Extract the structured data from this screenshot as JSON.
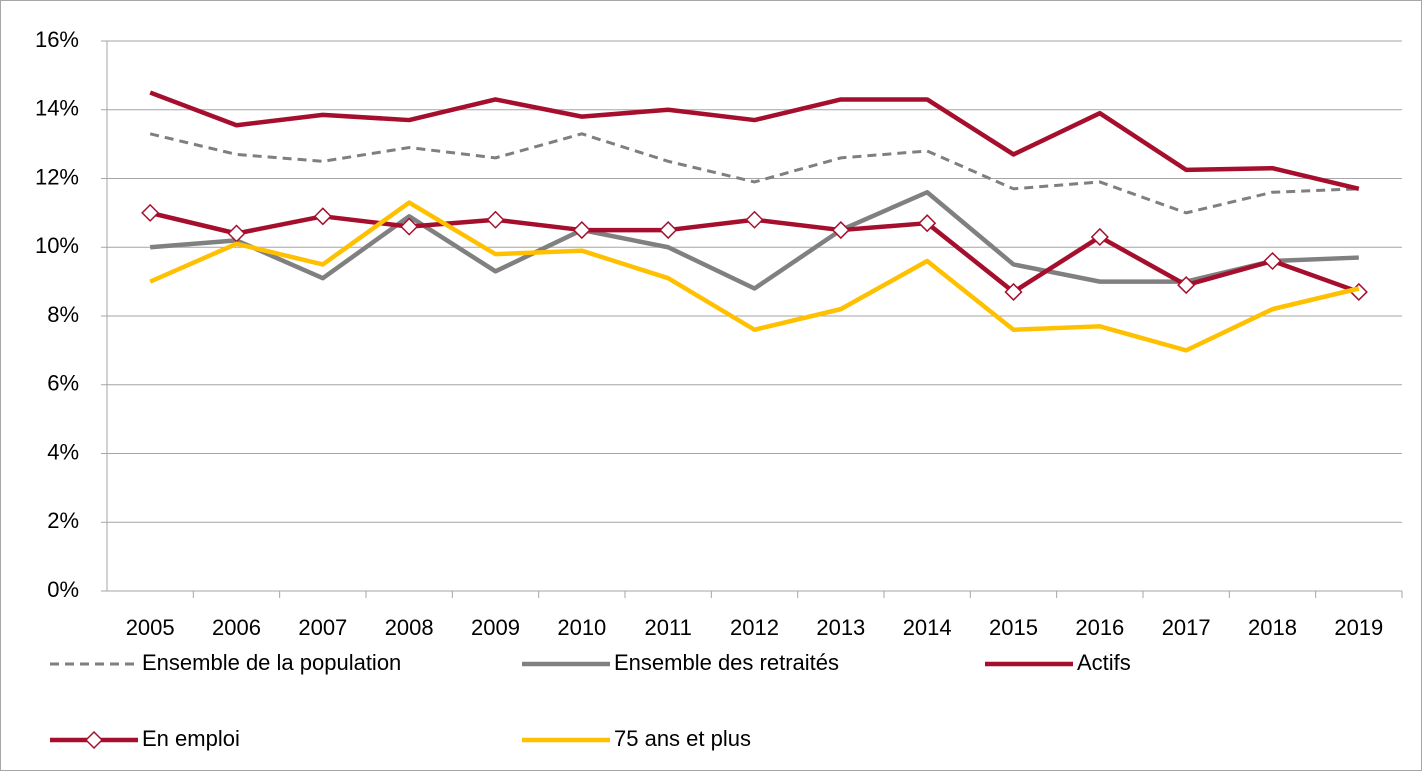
{
  "chart_data": {
    "type": "line",
    "categories": [
      "2005",
      "2006",
      "2007",
      "2008",
      "2009",
      "2010",
      "2011",
      "2012",
      "2013",
      "2014",
      "2015",
      "2016",
      "2017",
      "2018",
      "2019"
    ],
    "series": [
      {
        "name": "Ensemble de la population",
        "color": "#7f7f7f",
        "dashed": true,
        "values": [
          13.3,
          12.7,
          12.5,
          12.9,
          12.6,
          13.3,
          12.5,
          11.9,
          12.6,
          12.8,
          11.7,
          11.9,
          11.0,
          11.6,
          11.7
        ]
      },
      {
        "name": "Ensemble des retraités",
        "color": "#808080",
        "values": [
          10.0,
          10.2,
          9.1,
          10.9,
          9.3,
          10.5,
          10.0,
          8.8,
          10.5,
          11.6,
          9.5,
          9.0,
          9.0,
          9.6,
          9.7
        ]
      },
      {
        "name": "Actifs",
        "color": "#a50f2d",
        "values": [
          14.5,
          13.55,
          13.85,
          13.7,
          14.3,
          13.8,
          14.0,
          13.7,
          14.3,
          14.3,
          12.7,
          13.9,
          12.25,
          12.3,
          11.7
        ]
      },
      {
        "name": "En emploi",
        "color": "#a50f2d",
        "marker": "diamond",
        "values": [
          11.0,
          10.4,
          10.9,
          10.6,
          10.8,
          10.5,
          10.5,
          10.8,
          10.5,
          10.7,
          8.7,
          10.3,
          8.9,
          9.6,
          8.7
        ]
      },
      {
        "name": "75 ans et plus",
        "color": "#ffc000",
        "values": [
          9.0,
          10.1,
          9.5,
          11.3,
          9.8,
          9.9,
          9.1,
          7.6,
          8.2,
          9.6,
          7.6,
          7.7,
          7.0,
          8.2,
          8.8
        ]
      }
    ],
    "ylim": [
      0,
      16
    ],
    "yticks": [
      {
        "value": 0,
        "label": "0%"
      },
      {
        "value": 2,
        "label": "2%"
      },
      {
        "value": 4,
        "label": "4%"
      },
      {
        "value": 6,
        "label": "6%"
      },
      {
        "value": 8,
        "label": "8%"
      },
      {
        "value": 10,
        "label": "10%"
      },
      {
        "value": 12,
        "label": "12%"
      },
      {
        "value": 14,
        "label": "14%"
      },
      {
        "value": 16,
        "label": "16%"
      }
    ],
    "grid": true
  }
}
